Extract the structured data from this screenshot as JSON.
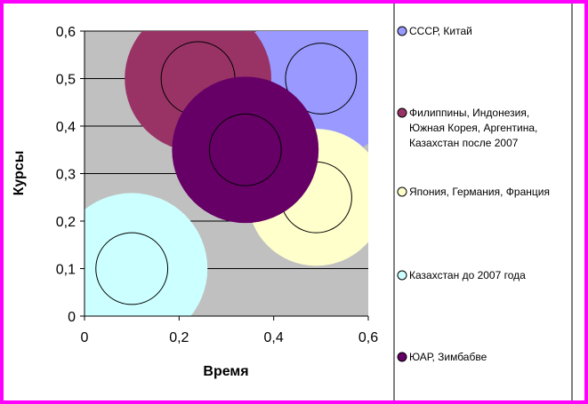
{
  "chart_data": {
    "type": "bubble",
    "title": "",
    "xlabel": "Время",
    "ylabel": "Курсы",
    "xlim": [
      0,
      0.6
    ],
    "ylim": [
      0,
      0.6
    ],
    "x_ticks": [
      "0",
      "0,2",
      "0,4",
      "0,6"
    ],
    "y_ticks": [
      "0",
      "0,1",
      "0,2",
      "0,3",
      "0,4",
      "0,5",
      "0,6"
    ],
    "grid": true,
    "legend_position": "right",
    "plot_background": "#c0c0c0",
    "series": [
      {
        "name": "СССР, Китай",
        "legend_lines": [
          "СССР, Китай"
        ],
        "color": "#9999ff",
        "x": 0.5,
        "y": 0.5,
        "size": 0.17,
        "inner": 0.075
      },
      {
        "name": "Филиппины, Индонезия, Южная Корея, Аргентина, Казахстан после 2007",
        "legend_lines": [
          "Филиппины, Индонезия,",
          "Южная Корея, Аргентина,",
          "Казахстан после 2007"
        ],
        "color": "#993366",
        "x": 0.24,
        "y": 0.5,
        "size": 0.155,
        "inner": 0.078
      },
      {
        "name": "Япония, Германия, Франция",
        "legend_lines": [
          "Япония, Германия, Франция"
        ],
        "color": "#ffffcc",
        "x": 0.49,
        "y": 0.25,
        "size": 0.145,
        "inner": 0.075
      },
      {
        "name": "Казахстан до 2007 года",
        "legend_lines": [
          "Казахстан до 2007 года"
        ],
        "color": "#ccffff",
        "x": 0.1,
        "y": 0.1,
        "size": 0.16,
        "inner": 0.076
      },
      {
        "name": "ЮАР, Зимбабве",
        "legend_lines": [
          "ЮАР, Зимбабве"
        ],
        "color": "#660066",
        "x": 0.34,
        "y": 0.35,
        "size": 0.155,
        "inner": 0.076
      }
    ]
  }
}
